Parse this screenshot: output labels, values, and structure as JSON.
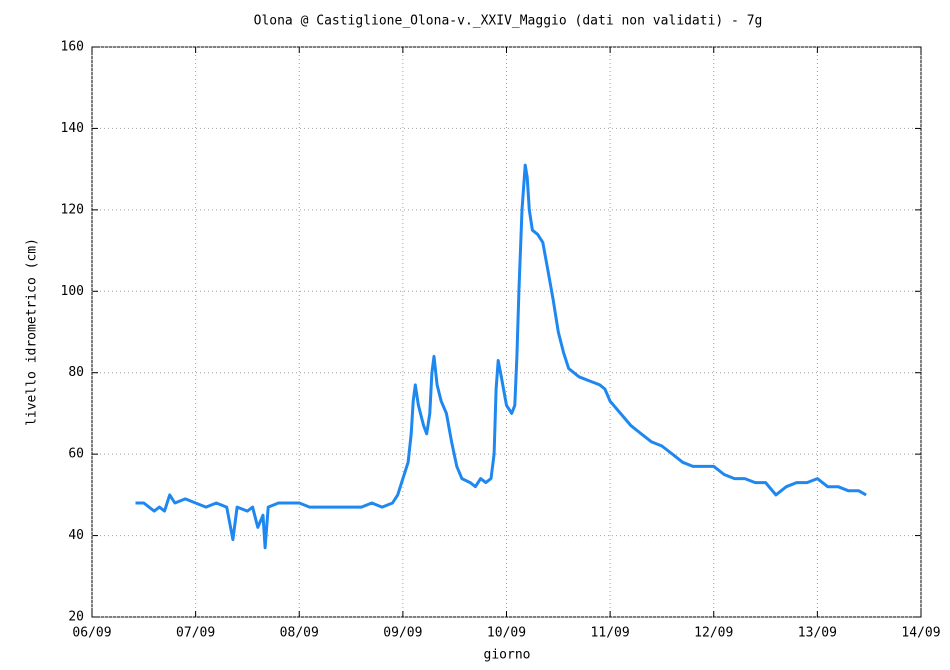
{
  "chart_data": {
    "type": "line",
    "title": "Olona @ Castiglione_Olona-v._XXIV_Maggio (dati non validati) - 7g",
    "xlabel": "giorno",
    "ylabel": "livello idrometrico (cm)",
    "xlim": [
      0,
      8
    ],
    "xticks": [
      {
        "value": 0,
        "label": "06/09"
      },
      {
        "value": 1,
        "label": "07/09"
      },
      {
        "value": 2,
        "label": "08/09"
      },
      {
        "value": 3,
        "label": "09/09"
      },
      {
        "value": 4,
        "label": "10/09"
      },
      {
        "value": 5,
        "label": "11/09"
      },
      {
        "value": 6,
        "label": "12/09"
      },
      {
        "value": 7,
        "label": "13/09"
      },
      {
        "value": 8,
        "label": "14/09"
      }
    ],
    "ylim": [
      20,
      160
    ],
    "yticks": [
      20,
      40,
      60,
      80,
      100,
      120,
      140,
      160
    ],
    "grid": true,
    "series": [
      {
        "color": "#1e88f0",
        "x": [
          0.42,
          0.5,
          0.55,
          0.6,
          0.65,
          0.7,
          0.75,
          0.8,
          0.9,
          1.0,
          1.1,
          1.2,
          1.3,
          1.36,
          1.4,
          1.5,
          1.55,
          1.6,
          1.65,
          1.67,
          1.7,
          1.8,
          1.9,
          2.0,
          2.1,
          2.2,
          2.3,
          2.4,
          2.5,
          2.6,
          2.7,
          2.8,
          2.9,
          2.95,
          3.0,
          3.05,
          3.08,
          3.1,
          3.12,
          3.15,
          3.2,
          3.23,
          3.26,
          3.28,
          3.3,
          3.33,
          3.37,
          3.42,
          3.47,
          3.52,
          3.57,
          3.65,
          3.7,
          3.75,
          3.8,
          3.85,
          3.88,
          3.9,
          3.92,
          3.95,
          4.0,
          4.05,
          4.08,
          4.1,
          4.12,
          4.15,
          4.18,
          4.2,
          4.22,
          4.25,
          4.3,
          4.35,
          4.4,
          4.45,
          4.5,
          4.55,
          4.6,
          4.7,
          4.8,
          4.9,
          4.95,
          5.0,
          5.1,
          5.2,
          5.3,
          5.4,
          5.5,
          5.6,
          5.7,
          5.8,
          5.9,
          6.0,
          6.1,
          6.2,
          6.3,
          6.4,
          6.5,
          6.6,
          6.7,
          6.8,
          6.9,
          7.0,
          7.1,
          7.2,
          7.3,
          7.4,
          7.47
        ],
        "values": [
          48,
          48,
          47,
          46,
          47,
          46,
          50,
          48,
          49,
          48,
          47,
          48,
          47,
          39,
          47,
          46,
          47,
          42,
          45,
          37,
          47,
          48,
          48,
          48,
          47,
          47,
          47,
          47,
          47,
          47,
          48,
          47,
          48,
          50,
          54,
          58,
          65,
          73,
          77,
          72,
          67,
          65,
          70,
          80,
          84,
          77,
          73,
          70,
          63,
          57,
          54,
          53,
          52,
          54,
          53,
          54,
          60,
          76,
          83,
          79,
          72,
          70,
          72,
          84,
          100,
          120,
          131,
          128,
          120,
          115,
          114,
          112,
          105,
          98,
          90,
          85,
          81,
          79,
          78,
          77,
          76,
          73,
          70,
          67,
          65,
          63,
          62,
          60,
          58,
          57,
          57,
          57,
          55,
          54,
          54,
          53,
          53,
          50,
          52,
          53,
          53,
          54,
          52,
          52,
          51,
          51,
          50
        ]
      }
    ]
  }
}
